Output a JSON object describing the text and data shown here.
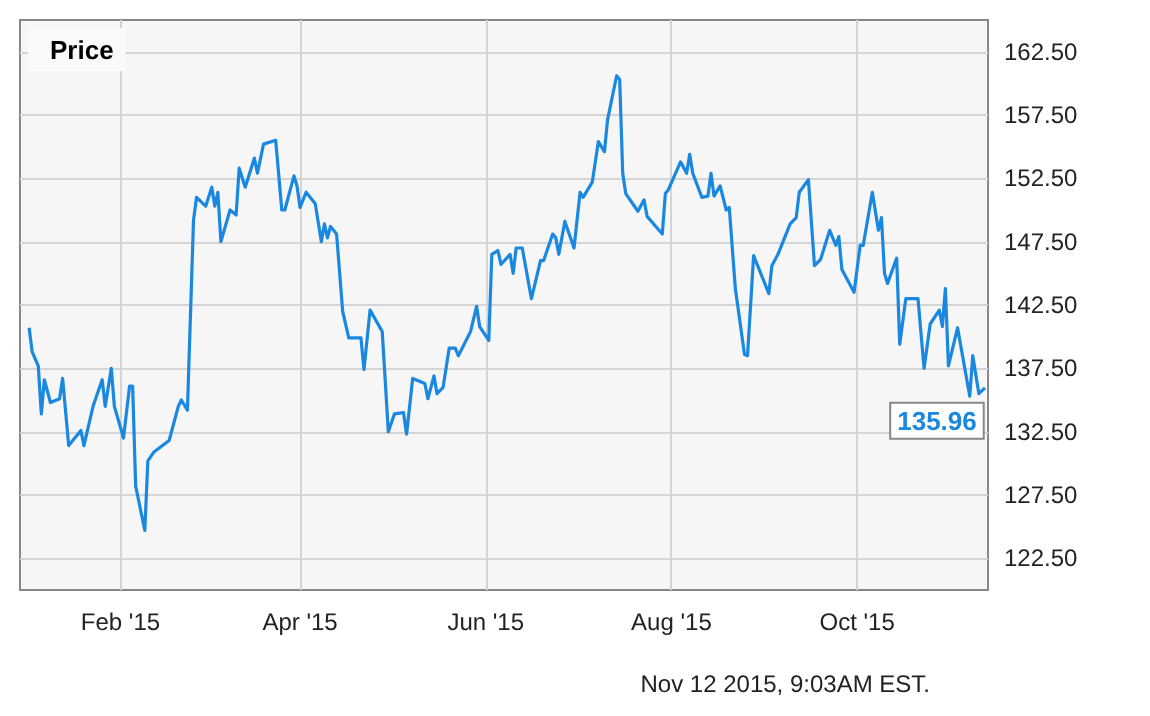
{
  "chart_data": {
    "type": "line",
    "legend": "top left",
    "grid": true,
    "marker": "none",
    "line_style": "solid",
    "xlim": [
      "2014-12-30",
      "2015-11-13"
    ],
    "xticks": [
      {
        "value": "2015-02-01",
        "label": "Feb '15"
      },
      {
        "value": "2015-04-01",
        "label": "Apr '15"
      },
      {
        "value": "2015-06-01",
        "label": "Jun '15"
      },
      {
        "value": "2015-08-01",
        "label": "Aug '15"
      },
      {
        "value": "2015-10-01",
        "label": "Oct '15"
      }
    ],
    "ylim": [
      120,
      165
    ],
    "yticks": [
      {
        "value": 122.5,
        "label": "122.50"
      },
      {
        "value": 127.5,
        "label": "127.50"
      },
      {
        "value": 132.5,
        "label": "132.50"
      },
      {
        "value": 137.5,
        "label": "137.50"
      },
      {
        "value": 142.5,
        "label": "142.50"
      },
      {
        "value": 147.5,
        "label": "147.50"
      },
      {
        "value": 152.5,
        "label": "152.50"
      },
      {
        "value": 157.5,
        "label": "157.50"
      },
      {
        "value": 162.5,
        "label": "162.50"
      }
    ],
    "x": [
      "2015-01-02",
      "2015-01-03",
      "2015-01-05",
      "2015-01-06",
      "2015-01-07",
      "2015-01-09",
      "2015-01-12",
      "2015-01-13",
      "2015-01-15",
      "2015-01-19",
      "2015-01-20",
      "2015-01-23",
      "2015-01-26",
      "2015-01-27",
      "2015-01-29",
      "2015-01-30",
      "2015-02-02",
      "2015-02-04",
      "2015-02-05",
      "2015-02-06",
      "2015-02-09",
      "2015-02-10",
      "2015-02-12",
      "2015-02-17",
      "2015-02-20",
      "2015-02-21",
      "2015-02-23",
      "2015-02-25",
      "2015-02-26",
      "2015-03-01",
      "2015-03-03",
      "2015-03-04",
      "2015-03-05",
      "2015-03-06",
      "2015-03-09",
      "2015-03-11",
      "2015-03-12",
      "2015-03-14",
      "2015-03-17",
      "2015-03-18",
      "2015-03-20",
      "2015-03-24",
      "2015-03-26",
      "2015-03-27",
      "2015-03-30",
      "2015-03-31",
      "2015-04-01",
      "2015-04-03",
      "2015-04-06",
      "2015-04-08",
      "2015-04-09",
      "2015-04-10",
      "2015-04-11",
      "2015-04-13",
      "2015-04-15",
      "2015-04-17",
      "2015-04-21",
      "2015-04-22",
      "2015-04-24",
      "2015-04-28",
      "2015-04-30",
      "2015-05-02",
      "2015-05-05",
      "2015-05-06",
      "2015-05-08",
      "2015-05-12",
      "2015-05-13",
      "2015-05-15",
      "2015-05-16",
      "2015-05-18",
      "2015-05-20",
      "2015-05-22",
      "2015-05-23",
      "2015-05-27",
      "2015-05-29",
      "2015-05-30",
      "2015-06-02",
      "2015-06-03",
      "2015-06-05",
      "2015-06-06",
      "2015-06-09",
      "2015-06-10",
      "2015-06-11",
      "2015-06-13",
      "2015-06-16",
      "2015-06-19",
      "2015-06-20",
      "2015-06-23",
      "2015-06-24",
      "2015-06-25",
      "2015-06-27",
      "2015-06-30",
      "2015-07-02",
      "2015-07-03",
      "2015-07-06",
      "2015-07-08",
      "2015-07-10",
      "2015-07-11",
      "2015-07-14",
      "2015-07-15",
      "2015-07-16",
      "2015-07-17",
      "2015-07-21",
      "2015-07-23",
      "2015-07-24",
      "2015-07-29",
      "2015-07-30",
      "2015-07-31",
      "2015-08-04",
      "2015-08-06",
      "2015-08-07",
      "2015-08-08",
      "2015-08-11",
      "2015-08-13",
      "2015-08-14",
      "2015-08-15",
      "2015-08-17",
      "2015-08-19",
      "2015-08-20",
      "2015-08-22",
      "2015-08-25",
      "2015-08-26",
      "2015-08-28",
      "2015-09-02",
      "2015-09-03",
      "2015-09-05",
      "2015-09-09",
      "2015-09-11",
      "2015-09-12",
      "2015-09-15",
      "2015-09-17",
      "2015-09-19",
      "2015-09-22",
      "2015-09-24",
      "2015-09-25",
      "2015-09-26",
      "2015-09-30",
      "2015-10-02",
      "2015-10-03",
      "2015-10-06",
      "2015-10-08",
      "2015-10-09",
      "2015-10-10",
      "2015-10-11",
      "2015-10-14",
      "2015-10-15",
      "2015-10-17",
      "2015-10-21",
      "2015-10-23",
      "2015-10-25",
      "2015-10-28",
      "2015-10-29",
      "2015-10-30",
      "2015-10-31",
      "2015-11-03",
      "2015-11-07",
      "2015-11-08",
      "2015-11-10",
      "2015-11-12"
    ],
    "series": [
      {
        "name": "Price",
        "color": "#1a88e0",
        "values": [
          140.7,
          138.8,
          137.7,
          133.9,
          136.6,
          134.8,
          135.1,
          136.7,
          131.4,
          132.6,
          131.4,
          134.5,
          136.6,
          134.5,
          137.5,
          134.5,
          132,
          136.1,
          136.1,
          128.2,
          124.7,
          130.2,
          130.9,
          131.8,
          134.5,
          135,
          134.2,
          149.2,
          151,
          150.3,
          151.8,
          150.3,
          151.4,
          147.5,
          150,
          149.6,
          153.3,
          151.8,
          154.1,
          152.9,
          155.2,
          155.5,
          150,
          150,
          152.7,
          151.9,
          150.2,
          151.4,
          150.5,
          147.5,
          148.9,
          147.8,
          148.7,
          148.1,
          142,
          139.9,
          139.9,
          137.4,
          142.1,
          140.4,
          132.5,
          133.9,
          134,
          132.3,
          136.7,
          136.3,
          135.1,
          136.9,
          135.5,
          136,
          139.1,
          139.1,
          138.5,
          140.4,
          142.4,
          140.8,
          139.7,
          146.5,
          146.8,
          145.7,
          146.5,
          145,
          147,
          147,
          143,
          146,
          146,
          148.1,
          147.8,
          146.5,
          149.1,
          147,
          151.4,
          151,
          152.2,
          155.4,
          154.6,
          157.1,
          160.6,
          160.3,
          152.9,
          151.3,
          149.9,
          150.8,
          149.5,
          148.1,
          151.3,
          151.6,
          153.8,
          152.9,
          154.4,
          152.9,
          151,
          151.1,
          152.9,
          151.1,
          151.9,
          150,
          150.2,
          143.8,
          138.6,
          138.5,
          146.4,
          143.4,
          145.6,
          146.5,
          148.9,
          149.4,
          151.4,
          152.4,
          145.6,
          146.1,
          148.4,
          147.2,
          147.9,
          145.3,
          143.5,
          147.2,
          147.2,
          151.4,
          148.4,
          149.4,
          145,
          144.2,
          146.2,
          139.4,
          143,
          143,
          137.5,
          141,
          142.1,
          140.8,
          143.8,
          137.7,
          140.7,
          135.3,
          138.5,
          135.5,
          135.96
        ]
      }
    ],
    "annotations": [
      "Nov 12 2015, 9:03AM EST.",
      {
        "text": "135.96",
        "x": "2015-11-12",
        "y": 135.96
      }
    ]
  }
}
